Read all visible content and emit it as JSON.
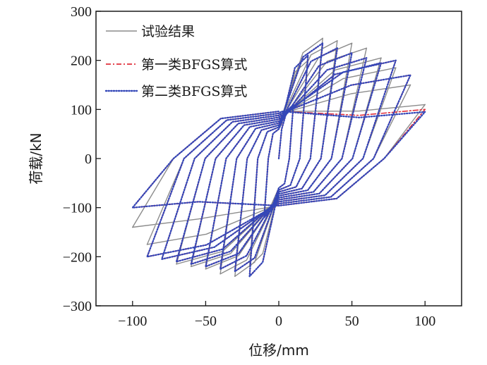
{
  "chart_data": {
    "type": "line",
    "xlabel": "位移/mm",
    "ylabel": "荷载/kN",
    "xlim": [
      -125,
      125
    ],
    "ylim": [
      -300,
      300
    ],
    "x_ticks": [
      "−100",
      "−50",
      "0",
      "50",
      "100"
    ],
    "x_tick_values": [
      -100,
      -50,
      0,
      50,
      100
    ],
    "y_ticks": [
      "300",
      "200",
      "100",
      "0",
      "−100",
      "−200",
      "−300"
    ],
    "y_tick_values": [
      300,
      200,
      100,
      0,
      -100,
      -200,
      -300
    ],
    "legend_position": "top-left",
    "grid": false,
    "series": [
      {
        "name": "试验结果",
        "color": "#8c8c8c",
        "style": "solid",
        "peaks": [
          {
            "d": 10,
            "f": 110
          },
          {
            "d": 20,
            "f": 200
          },
          {
            "d": 30,
            "f": 245
          },
          {
            "d": 40,
            "f": 240
          },
          {
            "d": 50,
            "f": 235
          },
          {
            "d": 60,
            "f": 225
          },
          {
            "d": 70,
            "f": 205
          },
          {
            "d": 80,
            "f": 185
          },
          {
            "d": 90,
            "f": 150
          },
          {
            "d": 100,
            "f": 110
          }
        ],
        "valleys": [
          {
            "d": -10,
            "f": -110
          },
          {
            "d": -20,
            "f": -220
          },
          {
            "d": -30,
            "f": -240
          },
          {
            "d": -40,
            "f": -235
          },
          {
            "d": -50,
            "f": -225
          },
          {
            "d": -60,
            "f": -220
          },
          {
            "d": -70,
            "f": -215
          },
          {
            "d": -80,
            "f": -205
          },
          {
            "d": -90,
            "f": -175
          },
          {
            "d": -100,
            "f": -140
          }
        ]
      },
      {
        "name": "第一类BFGS算式",
        "color": "#e0303c",
        "style": "dashdot",
        "peaks": [
          {
            "d": 10,
            "f": 110
          },
          {
            "d": 20,
            "f": 210
          },
          {
            "d": 30,
            "f": 235
          },
          {
            "d": 40,
            "f": 225
          },
          {
            "d": 50,
            "f": 215
          },
          {
            "d": 60,
            "f": 205
          },
          {
            "d": 70,
            "f": 195
          },
          {
            "d": 80,
            "f": 200
          },
          {
            "d": 90,
            "f": 170
          },
          {
            "d": 100,
            "f": 100
          }
        ],
        "valleys": [
          {
            "d": -10,
            "f": -120
          },
          {
            "d": -20,
            "f": -240
          },
          {
            "d": -30,
            "f": -230
          },
          {
            "d": -40,
            "f": -225
          },
          {
            "d": -50,
            "f": -220
          },
          {
            "d": -60,
            "f": -215
          },
          {
            "d": -70,
            "f": -210
          },
          {
            "d": -80,
            "f": -205
          },
          {
            "d": -90,
            "f": -200
          },
          {
            "d": -100,
            "f": -100
          }
        ]
      },
      {
        "name": "第二类BFGS算式",
        "color": "#3347b8",
        "style": "dotted",
        "peaks": [
          {
            "d": 10,
            "f": 110
          },
          {
            "d": 20,
            "f": 210
          },
          {
            "d": 30,
            "f": 235
          },
          {
            "d": 40,
            "f": 225
          },
          {
            "d": 50,
            "f": 215
          },
          {
            "d": 60,
            "f": 205
          },
          {
            "d": 70,
            "f": 195
          },
          {
            "d": 80,
            "f": 200
          },
          {
            "d": 90,
            "f": 170
          },
          {
            "d": 100,
            "f": 95
          }
        ],
        "valleys": [
          {
            "d": -10,
            "f": -120
          },
          {
            "d": -20,
            "f": -240
          },
          {
            "d": -30,
            "f": -230
          },
          {
            "d": -40,
            "f": -225
          },
          {
            "d": -50,
            "f": -220
          },
          {
            "d": -60,
            "f": -215
          },
          {
            "d": -70,
            "f": -210
          },
          {
            "d": -80,
            "f": -205
          },
          {
            "d": -90,
            "f": -200
          },
          {
            "d": -100,
            "f": -100
          }
        ]
      }
    ]
  }
}
